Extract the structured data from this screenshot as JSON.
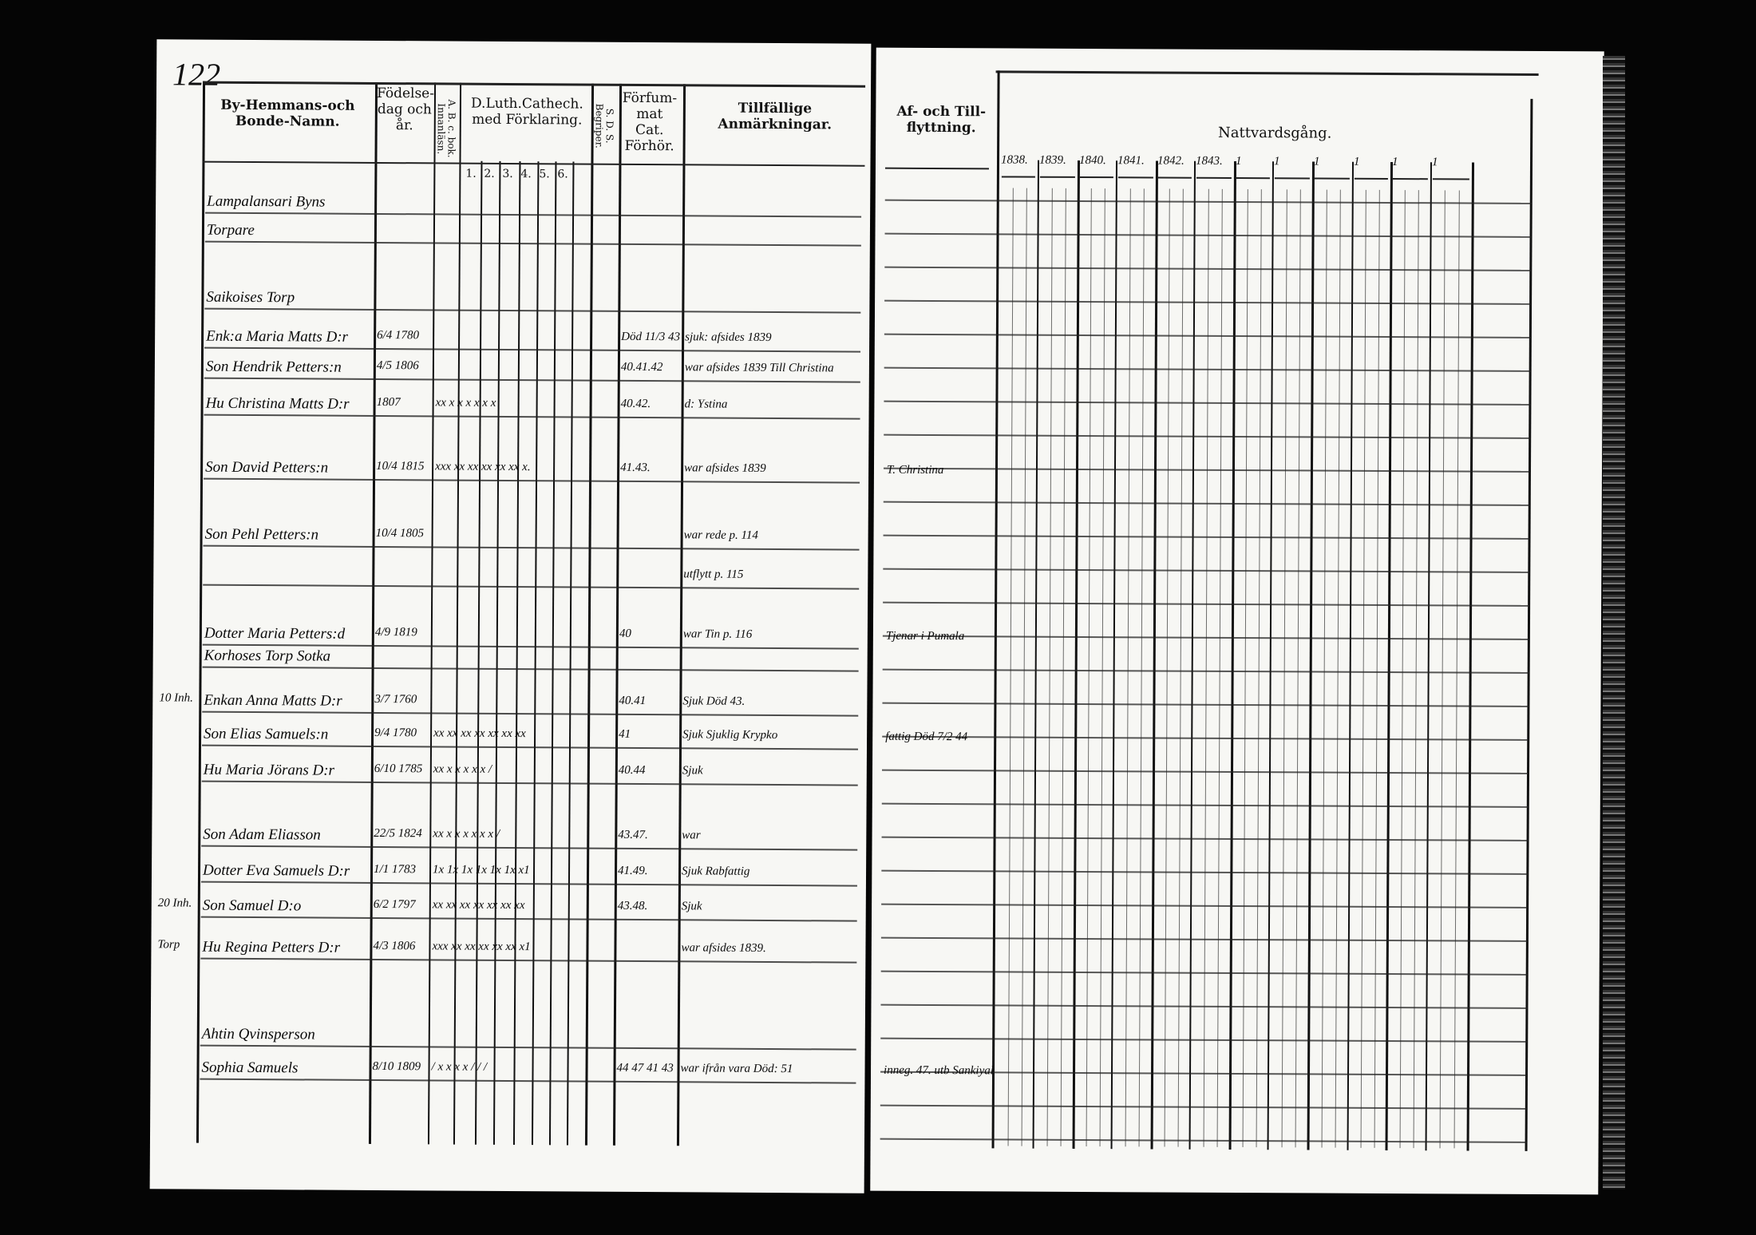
{
  "page_number": "122",
  "left_headers": {
    "name": "By-Hemmans-och Bonde-Namn.",
    "birth": "Födelse-dag och år.",
    "abc": "A. B. c. bok. Innanläsn.",
    "catech": "D.Luth.Cathech. med Förklaring.",
    "catech_sub": [
      "1.",
      "2.",
      "3.",
      "4.",
      "5.",
      "6."
    ],
    "sds": "S. D. S. Begriper.",
    "forfum": "Förfum-mat Cat. Förhör.",
    "remarks": "Tillfällige Anmärkningar."
  },
  "right_headers": {
    "moving": "Af- och Till-flyttning.",
    "communion": "Nattvardsgång.",
    "years": [
      "1838.",
      "1839.",
      "1840.",
      "1841.",
      "1842.",
      "1843.",
      "1",
      "1",
      "1",
      "1",
      "1",
      "1"
    ]
  },
  "rows": [
    {
      "margin": "",
      "name": "Lampalansari Byns",
      "birth": "",
      "marks": "",
      "forfum": "",
      "remark": "",
      "moving": ""
    },
    {
      "margin": "",
      "name": "Torpare",
      "birth": "",
      "marks": "",
      "forfum": "",
      "remark": "",
      "moving": ""
    },
    {
      "margin": "",
      "name": "Saikoises Torp",
      "birth": "",
      "marks": "",
      "forfum": "",
      "remark": "",
      "moving": ""
    },
    {
      "margin": "",
      "name": "Enk:a Maria Matts D:r",
      "birth": "6/4 1780",
      "marks": "",
      "forfum": "Död 11/3 43",
      "remark": "sjuk: afsides 1839",
      "moving": ""
    },
    {
      "margin": "",
      "name": "Son Hendrik Petters:n",
      "birth": "4/5 1806",
      "marks": "",
      "forfum": "40.41.42",
      "remark": "war afsides 1839 Till Christina",
      "moving": ""
    },
    {
      "margin": "",
      "name": "Hu Christina Matts D:r",
      "birth": "1807",
      "marks": "xx x x x x x x",
      "forfum": "40.42.",
      "remark": "d: Ystina",
      "moving": ""
    },
    {
      "margin": "",
      "name": "Son David Petters:n",
      "birth": "10/4 1815",
      "marks": "xxx xx xx xx xx xx x.",
      "forfum": "41.43.",
      "remark": "war afsides 1839",
      "moving": "T. Christina"
    },
    {
      "margin": "",
      "name": "Son Pehl Petters:n",
      "birth": "10/4 1805",
      "marks": "",
      "forfum": "",
      "remark": "war rede p. 114",
      "moving": ""
    },
    {
      "margin": "",
      "name": "",
      "birth": "",
      "marks": "",
      "forfum": "",
      "remark": "utflytt p. 115",
      "moving": ""
    },
    {
      "margin": "",
      "name": "Dotter Maria Petters:d",
      "birth": "4/9 1819",
      "marks": "",
      "forfum": "40",
      "remark": "war Tin p. 116",
      "moving": "Tjenar i Pumala"
    },
    {
      "margin": "",
      "name": "Korhoses Torp Sotka",
      "birth": "",
      "marks": "",
      "forfum": "",
      "remark": "",
      "moving": ""
    },
    {
      "margin": "10 Inh.",
      "name": "Enkan Anna Matts D:r",
      "birth": "3/7 1760",
      "marks": "",
      "forfum": "40.41",
      "remark": "Sjuk Död 43.",
      "moving": ""
    },
    {
      "margin": "",
      "name": "Son Elias Samuels:n",
      "birth": "9/4 1780",
      "marks": "xx xx xx xx xx xx xx",
      "forfum": "41",
      "remark": "Sjuk Sjuklig Krypko",
      "moving": "fattig Död 7/2 44"
    },
    {
      "margin": "",
      "name": "Hu Maria Jörans D:r",
      "birth": "6/10 1785",
      "marks": "xx x x x x x /",
      "forfum": "40.44",
      "remark": "Sjuk",
      "moving": ""
    },
    {
      "margin": "",
      "name": "Son Adam Eliasson",
      "birth": "22/5 1824",
      "marks": "xx x x x x x x /",
      "forfum": "43.47.",
      "remark": "war",
      "moving": ""
    },
    {
      "margin": "",
      "name": "Dotter Eva Samuels D:r",
      "birth": "1/1 1783",
      "marks": "1x 1x 1x 1x 1x 1x x1",
      "forfum": "41.49.",
      "remark": "Sjuk Rabfattig",
      "moving": ""
    },
    {
      "margin": "20 Inh.",
      "name": "Son Samuel D:o",
      "birth": "6/2 1797",
      "marks": "xx xx xx xx xx xx xx",
      "forfum": "43.48.",
      "remark": "Sjuk",
      "moving": ""
    },
    {
      "margin": "Torp",
      "name": "Hu Regina Petters D:r",
      "birth": "4/3 1806",
      "marks": "xxx xx xx xx xx xx x1",
      "forfum": "",
      "remark": "war afsides 1839.",
      "moving": ""
    },
    {
      "margin": "",
      "name": "Ahtin Qvinsperson",
      "birth": "",
      "marks": "",
      "forfum": "",
      "remark": "",
      "moving": ""
    },
    {
      "margin": "",
      "name": "Sophia Samuels",
      "birth": "8/10 1809",
      "marks": "/ x x x x / / /",
      "forfum": "44 47 41 43",
      "remark": "war ifrån vara Död: 51",
      "moving": "inneg. 47. utb Sankiyal"
    }
  ]
}
